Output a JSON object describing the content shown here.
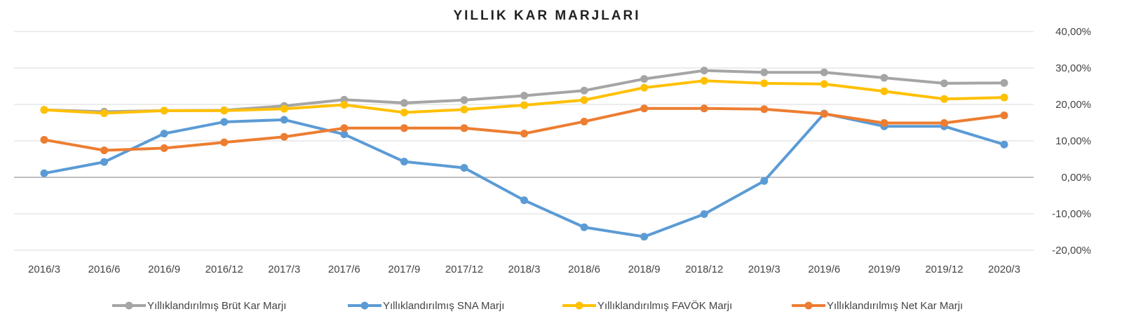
{
  "chart_data": {
    "type": "line",
    "title": "YILLIK KAR MARJLARI",
    "categories": [
      "2016/3",
      "2016/6",
      "2016/9",
      "2016/12",
      "2017/3",
      "2017/6",
      "2017/9",
      "2017/12",
      "2018/3",
      "2018/6",
      "2018/9",
      "2018/12",
      "2019/3",
      "2019/6",
      "2019/9",
      "2019/12",
      "2020/3"
    ],
    "y_ticks": [
      "40,00%",
      "30,00%",
      "20,00%",
      "10,00%",
      "0,00%",
      "-10,00%",
      "-20,00%"
    ],
    "ylim": [
      -20,
      40
    ],
    "y_axis_side": "right",
    "grid": true,
    "legend_position": "bottom",
    "series": [
      {
        "name": "Yıllıklandırılmış Brüt Kar Marjı",
        "color": "#A5A5A5",
        "values": [
          18.5,
          18.0,
          18.3,
          18.4,
          19.6,
          21.3,
          20.4,
          21.2,
          22.4,
          23.8,
          27.0,
          29.3,
          28.8,
          28.8,
          27.3,
          25.8,
          25.9
        ]
      },
      {
        "name": "Yıllıklandırılmış SNA Marjı",
        "color": "#5B9BD5",
        "values": [
          1.1,
          4.2,
          12.0,
          15.2,
          15.8,
          11.8,
          4.3,
          2.6,
          -6.3,
          -13.7,
          -16.3,
          -10.1,
          -1.0,
          17.5,
          14.0,
          14.0,
          9.0
        ]
      },
      {
        "name": "Yıllıklandırılmış FAVÖK Marjı",
        "color": "#FFC000",
        "values": [
          18.5,
          17.6,
          18.3,
          18.3,
          18.8,
          19.9,
          17.8,
          18.6,
          19.8,
          21.2,
          24.6,
          26.5,
          25.8,
          25.6,
          23.6,
          21.5,
          21.9
        ]
      },
      {
        "name": "Yıllıklandırılmış Net Kar Marjı",
        "color": "#ED7D31",
        "values": [
          10.3,
          7.4,
          8.0,
          9.6,
          11.1,
          13.5,
          13.5,
          13.5,
          12.0,
          15.3,
          18.9,
          18.9,
          18.7,
          17.4,
          14.9,
          14.9,
          17.0
        ]
      }
    ]
  }
}
